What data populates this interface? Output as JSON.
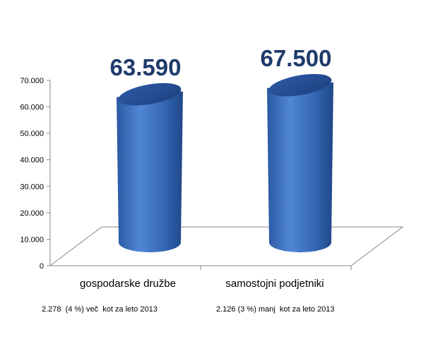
{
  "chart_data": {
    "type": "bar",
    "categories": [
      "gospodarske družbe",
      "samostojni podjetniki"
    ],
    "values": [
      63590,
      67500
    ],
    "data_labels": [
      "63.590",
      "67.500"
    ],
    "yticks": [
      "0",
      "10.000",
      "20.000",
      "30.000",
      "40.000",
      "50.000",
      "60.000",
      "70.000"
    ],
    "ylim": [
      0,
      70000
    ],
    "bar_color": "#3a6fc0",
    "label_color": "#1f3a6b",
    "notes": [
      "2.278  (4 %) več  kot za leto 2013",
      "2.126 (3 %) manj  kot za leto 2013"
    ]
  }
}
